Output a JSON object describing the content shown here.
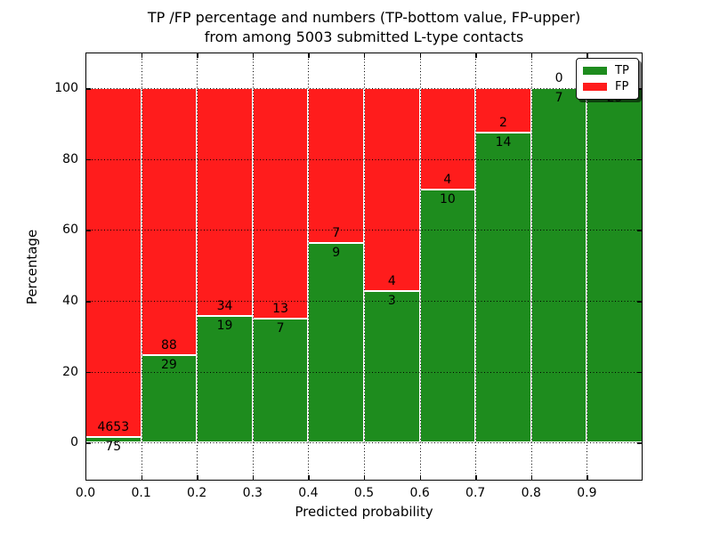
{
  "figure": {
    "title_line1": "TP /FP percentage and numbers (TP-bottom value, FP-upper)",
    "title_line2": "from among 5003 submitted L-type contacts"
  },
  "chart_data": {
    "type": "bar",
    "stacked": true,
    "normalized_to_percent": 100,
    "title": "TP /FP percentage and numbers (TP-bottom value, FP-upper) from among 5003 submitted L-type contacts",
    "xlabel": "Predicted probability",
    "ylabel": "Percentage",
    "total_contacts": 5003,
    "bin_left_edges": [
      0.0,
      0.1,
      0.2,
      0.3,
      0.4,
      0.5,
      0.6,
      0.7,
      0.8,
      0.9
    ],
    "bin_width": 0.1,
    "series": [
      {
        "name": "TP",
        "color": "#1e8c1e",
        "counts": [
          75,
          29,
          19,
          7,
          9,
          3,
          10,
          14,
          7,
          25
        ]
      },
      {
        "name": "FP",
        "color": "#ff1c1c",
        "counts": [
          4653,
          88,
          34,
          13,
          7,
          4,
          4,
          2,
          0,
          0
        ]
      }
    ],
    "tp_percent_of_bin": [
      1.59,
      24.79,
      35.85,
      35.0,
      56.25,
      42.86,
      71.43,
      87.5,
      100.0,
      100.0
    ],
    "xticks": [
      "0.0",
      "0.1",
      "0.2",
      "0.3",
      "0.4",
      "0.5",
      "0.6",
      "0.7",
      "0.8",
      "0.9"
    ],
    "yticks": [
      "0",
      "20",
      "40",
      "60",
      "80",
      "100"
    ],
    "xlim": [
      0.0,
      1.0
    ],
    "ylim": [
      -10.7,
      110.1
    ],
    "grid": "dotted, both axes, drawn over bars",
    "bar_edge_color": "#ffffff",
    "text_color": "#000000",
    "legend": {
      "position": "upper right",
      "entries": [
        {
          "label": "TP",
          "color": "#1e8c1e"
        },
        {
          "label": "FP",
          "color": "#ff1c1c"
        }
      ]
    }
  }
}
